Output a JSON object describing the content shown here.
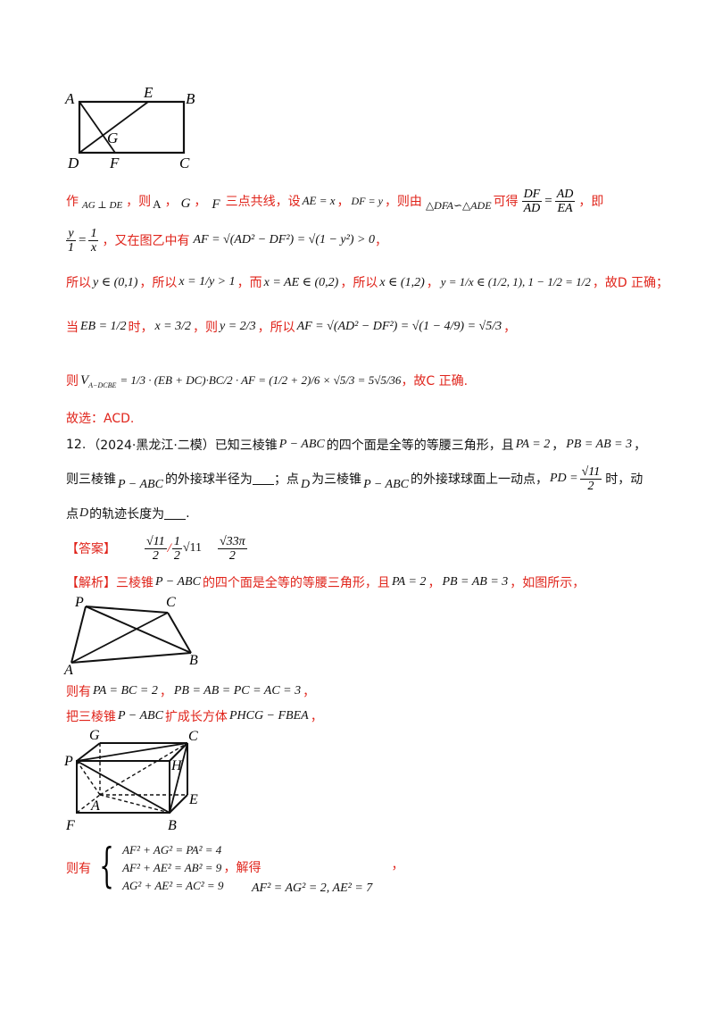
{
  "fig1": {
    "A": "A",
    "E": "E",
    "B": "B",
    "G": "G",
    "D": "D",
    "F": "F",
    "C": "C"
  },
  "l1": {
    "t1": "作",
    "m1": "AG ⊥ DE",
    "t2": "，则",
    "m2": "A",
    "t3": "，",
    "m3": "G",
    "t4": "，",
    "m4": "F",
    "t5": "三点共线，设",
    "m5": "AE = x",
    "t6": "，",
    "m6": "DF = y",
    "t7": "，则由",
    "m7": "△DFA∽△ADE",
    "t8": "可得",
    "f1n": "DF",
    "f1d": "AD",
    "eq": "=",
    "f2n": "AD",
    "f2d": "EA",
    "t9": "，即"
  },
  "l2": {
    "f1n": "y",
    "f1d": "1",
    "eq": "=",
    "f2n": "1",
    "f2d": "x",
    "t1": "，又在图乙中有",
    "m1": "AF = √(AD² − DF²) = √(1 − y²) > 0",
    "t2": "，"
  },
  "l3": {
    "t1": "所以",
    "m1": "y ∈ (0,1)",
    "t2": "，所以",
    "m2": "x = 1/y > 1",
    "t3": "，而",
    "m3": "x = AE ∈ (0,2)",
    "t4": "，所以",
    "m4": "x ∈ (1,2)",
    "t5": "，",
    "m5": "y = 1/x ∈ (1/2, 1), 1 − 1/2 = 1/2",
    "t6": "，故D 正确；"
  },
  "l4": {
    "t1": "当",
    "m1": "EB = 1/2",
    "t2": "时，",
    "m2": "x = 3/2",
    "t3": "，则",
    "m3": "y = 2/3",
    "t4": "，所以",
    "m4": "AF = √(AD² − DF²) = √(1 − 4/9) = √5/3",
    "t5": "，"
  },
  "l5": {
    "t1": "则",
    "m1": "V",
    "sub": "A−DCBE",
    "m2": "= 1/3 · (EB + DC)·BC/2 · AF = (1/2 + 2)/6 × √5/3 = 5√5/36",
    "t2": "，故C 正确."
  },
  "l6": {
    "t1": "故选：ACD."
  },
  "q12": {
    "num": "12.",
    "src": "（2024·黑龙江·二模）已知三棱锥",
    "m1": "P − ABC",
    "t2": "的四个面是全等的等腰三角形，且",
    "m2": "PA = 2",
    "t3": "，",
    "m3": "PB = AB = 3",
    "t4": "，",
    "t5": "则三棱锥",
    "m4": "P − ABC",
    "t6": "的外接球半径为",
    "t7": "；点",
    "m5": "D",
    "t8": "为三棱锥",
    "m6": "P − ABC",
    "t9": "的外接球球面上一动点，",
    "m7": "PD =",
    "f1n": "√11",
    "f1d": "2",
    "t10": "时，动",
    "t11": "点",
    "m8": "D",
    "t12": "的轨迹长度为",
    "t13": "."
  },
  "answer": {
    "tag": "【答案】",
    "a1n": "√11",
    "a1d": "2",
    "sep": "/",
    "a2n": "1",
    "a2d": "2",
    "a2r": "√11",
    "a3n": "√33π",
    "a3d": "2"
  },
  "analysis": {
    "tag": "【解析】",
    "t1": "三棱锥",
    "m1": "P − ABC",
    "t2": "的四个面是全等的等腰三角形，且",
    "m2": "PA = 2",
    "t3": "，",
    "m3": "PB = AB = 3",
    "t4": "，如图所示，"
  },
  "fig2": {
    "P": "P",
    "C": "C",
    "A": "A",
    "B": "B"
  },
  "l7": {
    "t1": "则有",
    "m1": "PA = BC = 2",
    "t2": "，",
    "m2": "PB = AB = PC = AC = 3",
    "t3": "，"
  },
  "l8": {
    "t1": "把三棱锥",
    "m1": "P − ABC",
    "t2": "扩成长方体",
    "m2": "PHCG − FBEA",
    "t3": "，"
  },
  "fig3": {
    "G": "G",
    "C": "C",
    "P": "P",
    "H": "H",
    "A": "A",
    "E": "E",
    "F": "F",
    "B": "B"
  },
  "l9": {
    "t1": "则有",
    "s1": "AF² + AG² = PA² = 4",
    "s2": "AF² + AE² = AB² = 9",
    "s3": "AG² + AE² = AC² = 9",
    "t2": "，解得",
    "t3": "，",
    "m1": "AF² = AG² = 2, AE² = 7"
  }
}
